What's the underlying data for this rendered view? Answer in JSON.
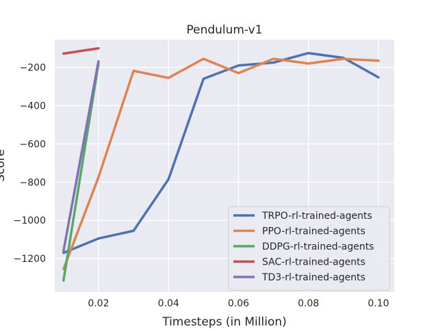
{
  "chart_data": {
    "type": "line",
    "title": "Pendulum-v1",
    "xlabel": "Timesteps (in Million)",
    "ylabel": "Score",
    "xlim": [
      0.0075,
      0.1045
    ],
    "ylim": [
      -1375,
      -55
    ],
    "xticks": [
      0.02,
      0.04,
      0.06,
      0.08,
      0.1
    ],
    "xtick_labels": [
      "0.02",
      "0.04",
      "0.06",
      "0.08",
      "0.10"
    ],
    "yticks": [
      -1200,
      -1000,
      -800,
      -600,
      -400,
      -200
    ],
    "ytick_labels": [
      "−1200",
      "−1000",
      "−800",
      "−600",
      "−400",
      "−200"
    ],
    "grid": true,
    "legend_position": "lower-right",
    "series": [
      {
        "name": "TRPO-rl-trained-agents",
        "color": "#4c72b0",
        "x": [
          0.01,
          0.02,
          0.03,
          0.04,
          0.05,
          0.06,
          0.07,
          0.08,
          0.09,
          0.1
        ],
        "y": [
          -1170,
          -1095,
          -1055,
          -785,
          -260,
          -190,
          -175,
          -125,
          -150,
          -252
        ]
      },
      {
        "name": "PPO-rl-trained-agents",
        "color": "#dd8452",
        "x": [
          0.01,
          0.02,
          0.03,
          0.04,
          0.05,
          0.06,
          0.07,
          0.08,
          0.09,
          0.1
        ],
        "y": [
          -1255,
          -775,
          -218,
          -255,
          -155,
          -230,
          -155,
          -180,
          -155,
          -165
        ]
      },
      {
        "name": "DDPG-rl-trained-agents",
        "color": "#55a868",
        "x": [
          0.01,
          0.02
        ],
        "y": [
          -1315,
          -180
        ]
      },
      {
        "name": "SAC-rl-trained-agents",
        "color": "#c44e52",
        "x": [
          0.01,
          0.02
        ],
        "y": [
          -128,
          -100
        ]
      },
      {
        "name": "TD3-rl-trained-agents",
        "color": "#8172b3",
        "x": [
          0.01,
          0.02
        ],
        "y": [
          -1160,
          -168
        ]
      }
    ]
  }
}
